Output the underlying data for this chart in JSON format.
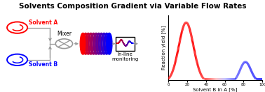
{
  "title": "Solvents Composition Gradient via Variable Flow Rates",
  "title_fontsize": 7.5,
  "title_fontweight": "bold",
  "solvent_a_label": "Solvent A",
  "solvent_b_label": "Solvent B",
  "mixer_label": "Mixer",
  "monitoring_label": "In-line\nmonitoring",
  "xlabel": "Solvent B in A [%]",
  "ylabel": "Reaction yield [%]",
  "color_red": "#FF0000",
  "color_blue": "#0000FF",
  "color_gray": "#999999",
  "background": "#FFFFFF",
  "figsize": [
    3.78,
    1.32
  ],
  "dpi": 100
}
